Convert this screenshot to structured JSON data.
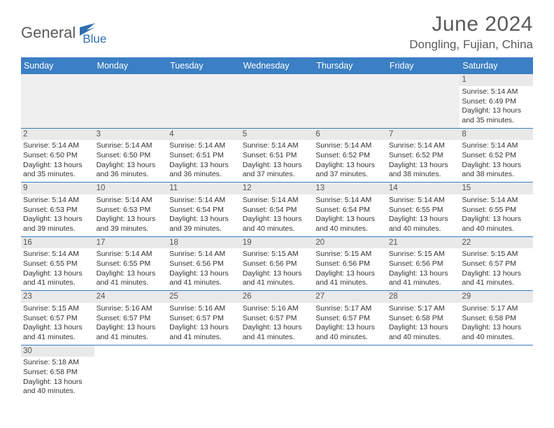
{
  "logo": {
    "text1": "General",
    "text2": "Blue"
  },
  "title": "June 2024",
  "location": "Dongling, Fujian, China",
  "colors": {
    "header_bg": "#3b7fc4",
    "header_fg": "#ffffff",
    "daynum_bg": "#e9e9e9",
    "row_border": "#3b7fc4",
    "text": "#333333",
    "title_color": "#5a5a5a"
  },
  "weekdays": [
    "Sunday",
    "Monday",
    "Tuesday",
    "Wednesday",
    "Thursday",
    "Friday",
    "Saturday"
  ],
  "labels": {
    "sunrise": "Sunrise:",
    "sunset": "Sunset:",
    "daylight": "Daylight:"
  },
  "weeks": [
    [
      null,
      null,
      null,
      null,
      null,
      null,
      {
        "n": "1",
        "sr": "5:14 AM",
        "ss": "6:49 PM",
        "dl": "13 hours and 35 minutes."
      }
    ],
    [
      {
        "n": "2",
        "sr": "5:14 AM",
        "ss": "6:50 PM",
        "dl": "13 hours and 35 minutes."
      },
      {
        "n": "3",
        "sr": "5:14 AM",
        "ss": "6:50 PM",
        "dl": "13 hours and 36 minutes."
      },
      {
        "n": "4",
        "sr": "5:14 AM",
        "ss": "6:51 PM",
        "dl": "13 hours and 36 minutes."
      },
      {
        "n": "5",
        "sr": "5:14 AM",
        "ss": "6:51 PM",
        "dl": "13 hours and 37 minutes."
      },
      {
        "n": "6",
        "sr": "5:14 AM",
        "ss": "6:52 PM",
        "dl": "13 hours and 37 minutes."
      },
      {
        "n": "7",
        "sr": "5:14 AM",
        "ss": "6:52 PM",
        "dl": "13 hours and 38 minutes."
      },
      {
        "n": "8",
        "sr": "5:14 AM",
        "ss": "6:52 PM",
        "dl": "13 hours and 38 minutes."
      }
    ],
    [
      {
        "n": "9",
        "sr": "5:14 AM",
        "ss": "6:53 PM",
        "dl": "13 hours and 39 minutes."
      },
      {
        "n": "10",
        "sr": "5:14 AM",
        "ss": "6:53 PM",
        "dl": "13 hours and 39 minutes."
      },
      {
        "n": "11",
        "sr": "5:14 AM",
        "ss": "6:54 PM",
        "dl": "13 hours and 39 minutes."
      },
      {
        "n": "12",
        "sr": "5:14 AM",
        "ss": "6:54 PM",
        "dl": "13 hours and 40 minutes."
      },
      {
        "n": "13",
        "sr": "5:14 AM",
        "ss": "6:54 PM",
        "dl": "13 hours and 40 minutes."
      },
      {
        "n": "14",
        "sr": "5:14 AM",
        "ss": "6:55 PM",
        "dl": "13 hours and 40 minutes."
      },
      {
        "n": "15",
        "sr": "5:14 AM",
        "ss": "6:55 PM",
        "dl": "13 hours and 40 minutes."
      }
    ],
    [
      {
        "n": "16",
        "sr": "5:14 AM",
        "ss": "6:55 PM",
        "dl": "13 hours and 41 minutes."
      },
      {
        "n": "17",
        "sr": "5:14 AM",
        "ss": "6:55 PM",
        "dl": "13 hours and 41 minutes."
      },
      {
        "n": "18",
        "sr": "5:14 AM",
        "ss": "6:56 PM",
        "dl": "13 hours and 41 minutes."
      },
      {
        "n": "19",
        "sr": "5:15 AM",
        "ss": "6:56 PM",
        "dl": "13 hours and 41 minutes."
      },
      {
        "n": "20",
        "sr": "5:15 AM",
        "ss": "6:56 PM",
        "dl": "13 hours and 41 minutes."
      },
      {
        "n": "21",
        "sr": "5:15 AM",
        "ss": "6:56 PM",
        "dl": "13 hours and 41 minutes."
      },
      {
        "n": "22",
        "sr": "5:15 AM",
        "ss": "6:57 PM",
        "dl": "13 hours and 41 minutes."
      }
    ],
    [
      {
        "n": "23",
        "sr": "5:15 AM",
        "ss": "6:57 PM",
        "dl": "13 hours and 41 minutes."
      },
      {
        "n": "24",
        "sr": "5:16 AM",
        "ss": "6:57 PM",
        "dl": "13 hours and 41 minutes."
      },
      {
        "n": "25",
        "sr": "5:16 AM",
        "ss": "6:57 PM",
        "dl": "13 hours and 41 minutes."
      },
      {
        "n": "26",
        "sr": "5:16 AM",
        "ss": "6:57 PM",
        "dl": "13 hours and 41 minutes."
      },
      {
        "n": "27",
        "sr": "5:17 AM",
        "ss": "6:57 PM",
        "dl": "13 hours and 40 minutes."
      },
      {
        "n": "28",
        "sr": "5:17 AM",
        "ss": "6:58 PM",
        "dl": "13 hours and 40 minutes."
      },
      {
        "n": "29",
        "sr": "5:17 AM",
        "ss": "6:58 PM",
        "dl": "13 hours and 40 minutes."
      }
    ],
    [
      {
        "n": "30",
        "sr": "5:18 AM",
        "ss": "6:58 PM",
        "dl": "13 hours and 40 minutes."
      },
      null,
      null,
      null,
      null,
      null,
      null
    ]
  ]
}
